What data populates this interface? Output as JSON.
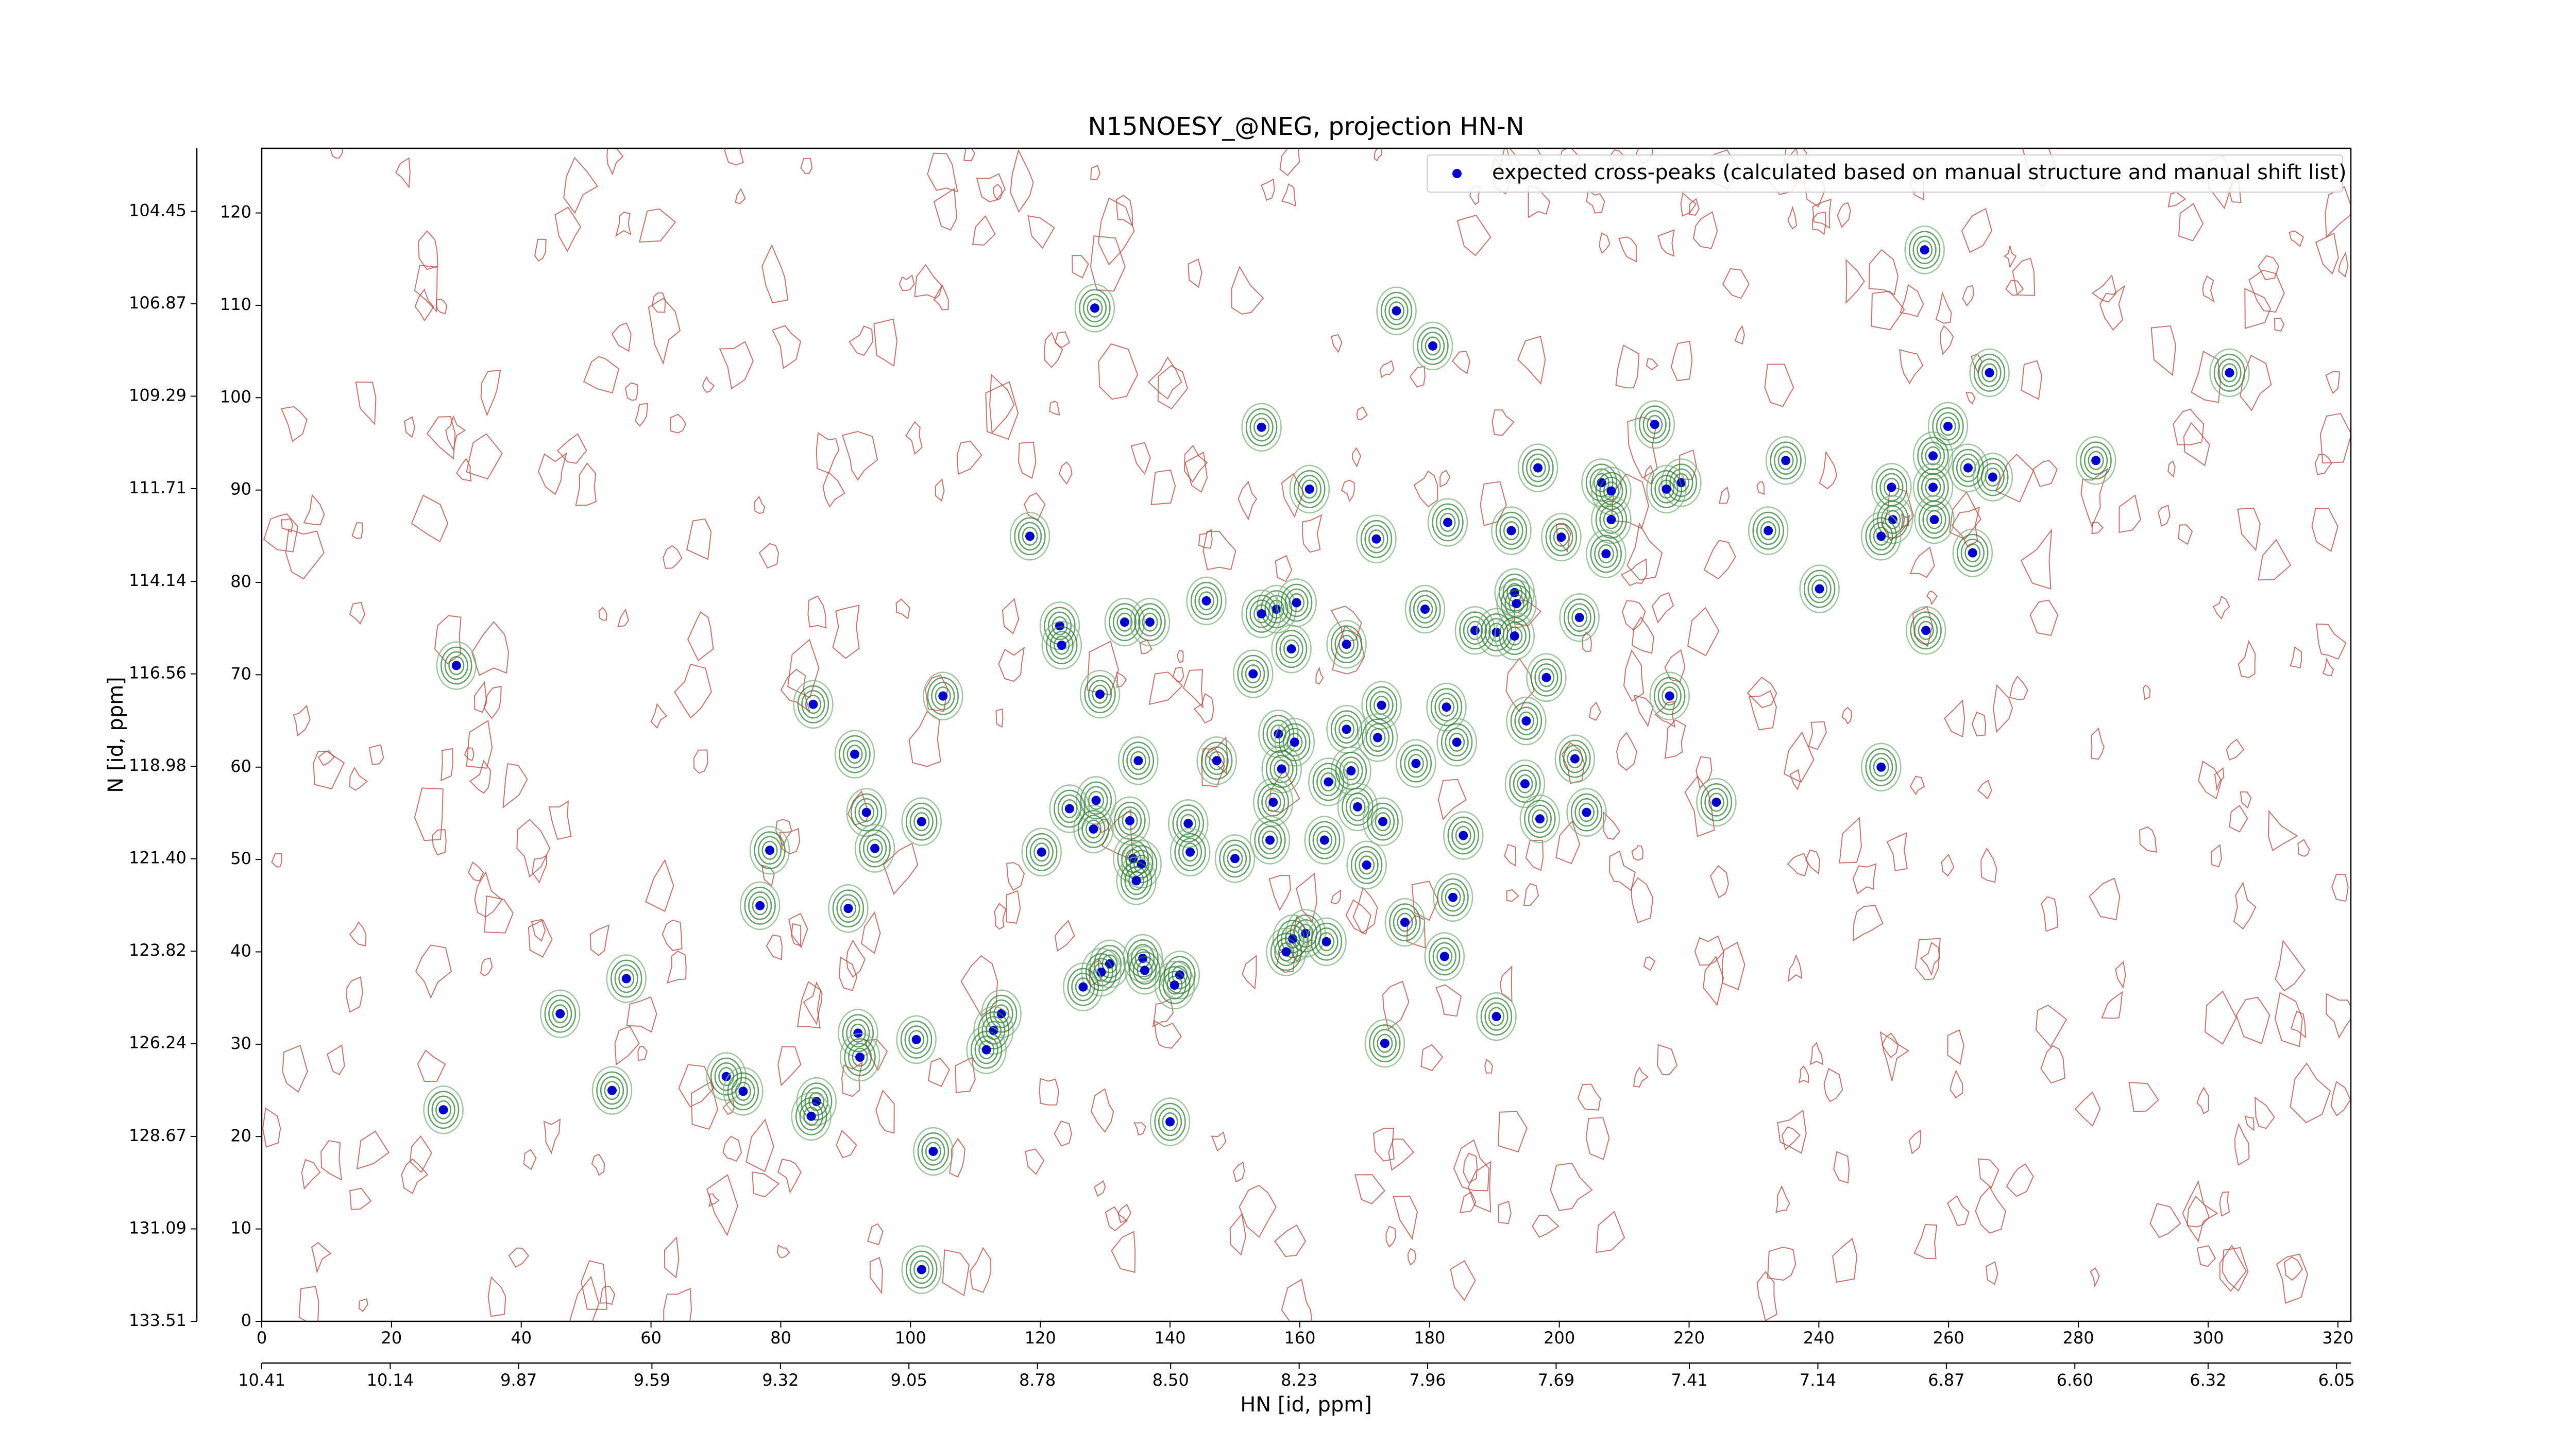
{
  "chart_data": {
    "type": "scatter",
    "title": "N15NOESY_@NEG, projection HN-N",
    "xlabel": "HN [id, ppm]",
    "ylabel": "N [id, ppm]",
    "legend": "upper right",
    "series": [
      {
        "name": "expected cross-peaks (calculated based on manual structure and manual shift list)",
        "color": "#0000cc",
        "x": [
          256.3,
          128.4,
          174.9,
          180.5,
          266.3,
          303.3,
          154.1,
          214.7,
          259.9,
          234.9,
          257.6,
          263.0,
          282.7,
          196.7,
          206.5,
          208.0,
          218.8,
          216.5,
          251.2,
          257.6,
          266.8,
          161.5,
          251.4,
          257.8,
          182.8,
          192.6,
          200.3,
          208.0,
          232.2,
          249.6,
          171.8,
          118.4,
          207.2,
          263.7,
          193.1,
          193.4,
          240.1,
          145.6,
          156.4,
          159.5,
          154.1,
          179.3,
          203.1,
          123.0,
          133.0,
          136.9,
          123.3,
          158.7,
          167.2,
          187.0,
          190.3,
          193.1,
          256.5,
          152.8,
          198.0,
          30.0,
          129.2,
          105.0,
          85.0,
          217.0,
          182.6,
          172.6,
          194.9,
          156.7,
          167.2,
          172.0,
          184.2,
          159.2,
          91.4,
          135.1,
          147.2,
          202.4,
          157.2,
          177.9,
          167.9,
          249.6,
          194.7,
          164.4,
          224.2,
          128.6,
          124.5,
          155.9,
          168.9,
          93.2,
          101.7,
          133.8,
          142.8,
          128.2,
          204.2,
          197.0,
          172.8,
          163.8,
          155.4,
          185.2,
          94.5,
          78.3,
          120.2,
          134.3,
          135.6,
          143.1,
          150.0,
          170.3,
          134.8,
          76.8,
          90.4,
          183.6,
          176.2,
          160.9,
          158.9,
          164.1,
          157.9,
          182.3,
          130.7,
          129.4,
          135.8,
          136.1,
          141.5,
          140.7,
          126.6,
          56.2,
          46.0,
          114.0,
          112.8,
          190.3,
          91.9,
          100.9,
          111.7,
          173.1,
          92.2,
          71.6,
          54.0,
          74.2,
          85.5,
          28.0,
          84.7,
          140.0,
          103.5,
          101.7
        ],
        "values": [
          116.0,
          109.7,
          109.4,
          105.6,
          102.7,
          102.7,
          96.8,
          97.1,
          96.9,
          93.2,
          93.7,
          92.4,
          93.2,
          92.4,
          90.8,
          89.9,
          90.8,
          90.1,
          90.3,
          90.3,
          91.4,
          90.1,
          86.8,
          86.8,
          86.5,
          85.6,
          84.9,
          86.8,
          85.6,
          85.0,
          84.7,
          85.0,
          83.1,
          83.2,
          78.9,
          77.7,
          79.3,
          78.0,
          77.1,
          77.8,
          76.6,
          77.1,
          76.2,
          75.3,
          75.7,
          75.7,
          73.2,
          72.8,
          73.3,
          74.8,
          74.6,
          74.2,
          74.8,
          70.1,
          69.7,
          71.0,
          67.9,
          67.7,
          66.8,
          67.7,
          66.5,
          66.7,
          65.0,
          63.6,
          64.1,
          63.2,
          62.7,
          62.7,
          61.4,
          60.7,
          60.7,
          60.9,
          59.8,
          60.4,
          59.6,
          60.0,
          58.2,
          58.4,
          56.2,
          56.4,
          55.5,
          56.2,
          55.7,
          55.1,
          54.1,
          54.2,
          53.9,
          53.3,
          55.1,
          54.4,
          54.1,
          52.1,
          52.1,
          52.6,
          51.2,
          51.0,
          50.8,
          50.1,
          49.5,
          50.8,
          50.1,
          49.4,
          47.7,
          45.0,
          44.7,
          45.9,
          43.2,
          42.0,
          41.4,
          41.1,
          40.0,
          39.5,
          38.7,
          37.8,
          39.3,
          38.0,
          37.5,
          36.4,
          36.2,
          37.1,
          33.3,
          33.3,
          31.5,
          33.0,
          31.2,
          30.5,
          29.4,
          30.1,
          28.6,
          26.5,
          25.0,
          24.9,
          23.8,
          22.9,
          22.2,
          21.6,
          18.4,
          5.6
        ]
      }
    ],
    "xlim": [
      0,
      322
    ],
    "ylim": [
      0,
      127
    ],
    "xticks": [
      0,
      20,
      40,
      60,
      80,
      100,
      120,
      140,
      160,
      180,
      200,
      220,
      240,
      260,
      280,
      300,
      320
    ],
    "yticks": [
      0,
      10,
      20,
      30,
      40,
      50,
      60,
      70,
      80,
      90,
      100,
      110,
      120
    ],
    "x2lim": [
      10.41,
      6.02
    ],
    "x2ticks": [
      10.41,
      10.14,
      9.87,
      9.59,
      9.32,
      9.05,
      8.78,
      {
        "value": 8.5,
        "label": "8.50"
      },
      8.23,
      7.96,
      7.69,
      7.41,
      7.14,
      6.87,
      {
        "value": 6.6,
        "label": "6.60"
      },
      6.32,
      6.05
    ],
    "y2lim": [
      133.51,
      102.8
    ],
    "y2ticks": [
      133.51,
      131.09,
      128.67,
      126.24,
      123.82,
      {
        "value": 121.4,
        "label": "121.40"
      },
      118.98,
      116.56,
      114.14,
      111.71,
      109.29,
      106.87,
      104.45
    ]
  }
}
